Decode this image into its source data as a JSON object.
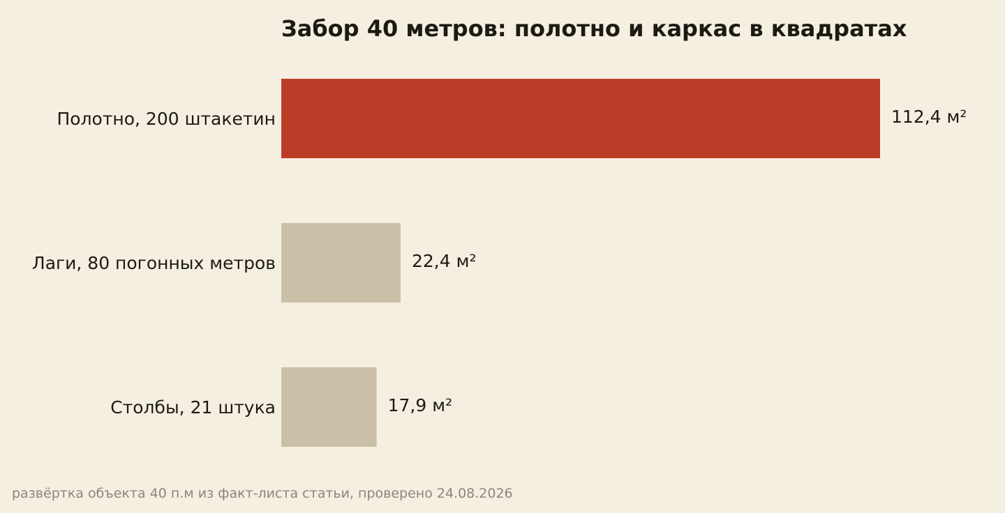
{
  "colors": {
    "background": "#f5efe2",
    "highlight": "#bc3d27",
    "muted": "#c9c0a7",
    "text": "#1c1a12",
    "footnote": "#8c857a"
  },
  "chart_data": {
    "type": "bar",
    "orientation": "horizontal",
    "title": "Забор 40 метров: полотно и каркас в квадратах",
    "categories": [
      "Полотно, 200 штакетин",
      "Лаги, 80 погонных метров",
      "Столбы, 21 штука"
    ],
    "values": [
      112.4,
      22.4,
      17.9
    ],
    "value_labels": [
      "112,4 м²",
      "22,4 м²",
      "17,9 м²"
    ],
    "highlighted": [
      true,
      false,
      false
    ],
    "xlim": [
      0,
      112.4
    ],
    "grid": false,
    "legend": "none",
    "note": "развёртка объекта 40 п.м из факт-листа статьи, проверено 24.08.2026"
  }
}
